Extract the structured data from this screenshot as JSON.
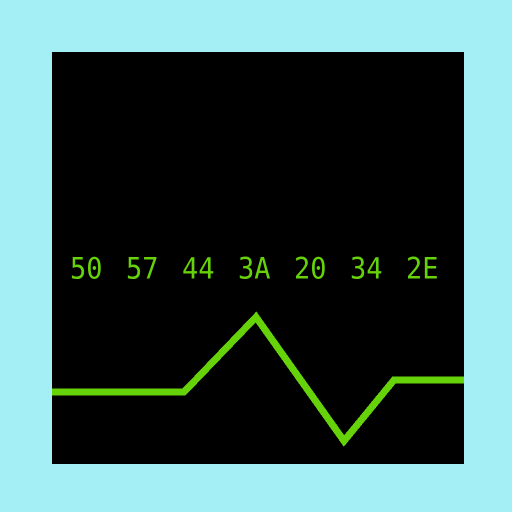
{
  "display": {
    "background_color": "#a3eff5",
    "screen_color": "#000000",
    "accent_color": "#66d20a",
    "hex_bytes": [
      "50",
      "57",
      "44",
      "3A",
      "20",
      "34",
      "2E"
    ]
  },
  "waveform": {
    "shape": "baseline-peak-trough-baseline"
  }
}
